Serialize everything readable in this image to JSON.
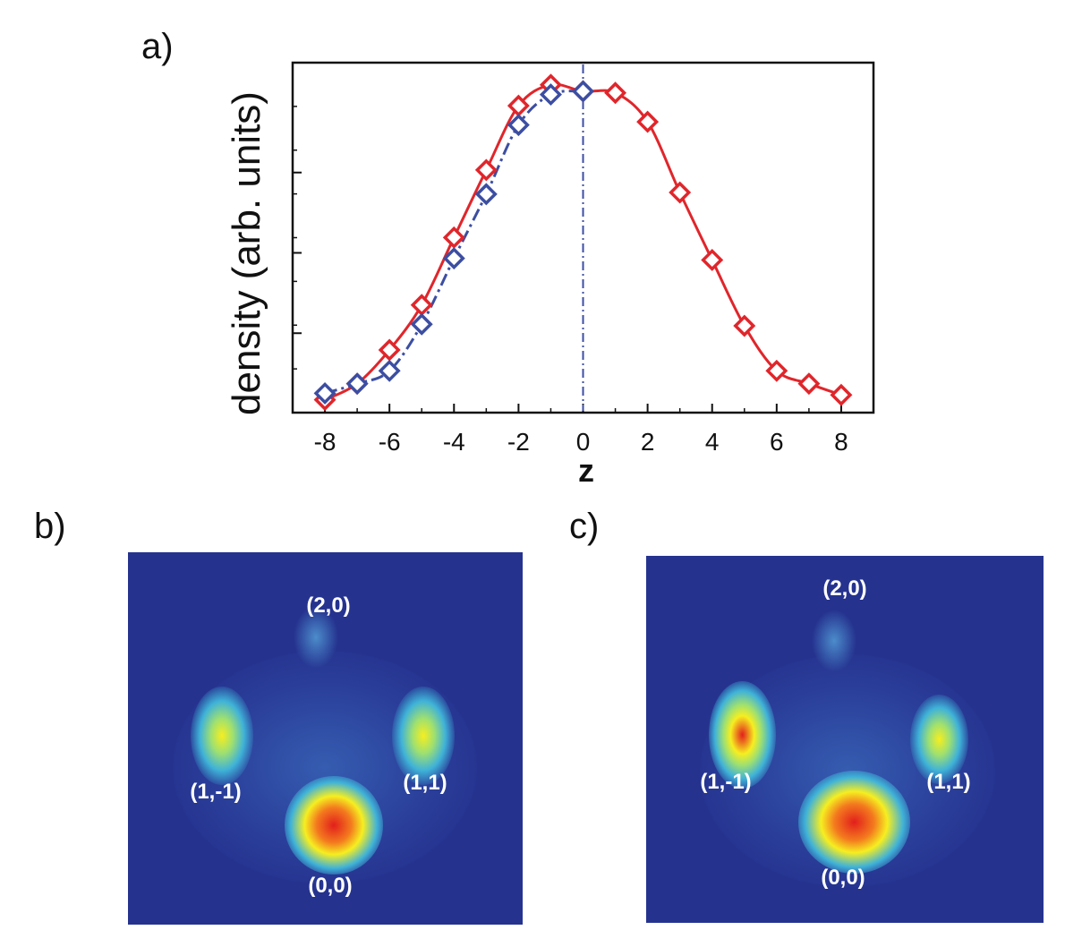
{
  "panels": {
    "a": "a)",
    "b": "b)",
    "c": "c)"
  },
  "chart_data": {
    "type": "scatter",
    "xlabel": "z",
    "ylabel": "density (arb. units)",
    "xlim": [
      -9,
      9
    ],
    "ylim": [
      0,
      1.0
    ],
    "x_ticks": [
      "-8",
      "-6",
      "-4",
      "-2",
      "0",
      "2",
      "4",
      "6",
      "8"
    ],
    "y_ticks_labeled": false,
    "vertical_reference_line": 0,
    "series": [
      {
        "color": "#e0262b",
        "marker": "diamond-open",
        "line": "solid",
        "points": [
          [
            -8,
            0.015
          ],
          [
            -7,
            0.065
          ],
          [
            -6,
            0.17
          ],
          [
            -5,
            0.31
          ],
          [
            -4,
            0.52
          ],
          [
            -3,
            0.73
          ],
          [
            -2,
            0.93
          ],
          [
            -1,
            0.995
          ],
          [
            0,
            0.975
          ],
          [
            1,
            0.97
          ],
          [
            2,
            0.88
          ],
          [
            3,
            0.66
          ],
          [
            4,
            0.45
          ],
          [
            5,
            0.245
          ],
          [
            6,
            0.105
          ],
          [
            7,
            0.065
          ],
          [
            8,
            0.03
          ]
        ]
      },
      {
        "color": "#3c4ea2",
        "marker": "diamond-open",
        "line": "dash-dot",
        "points": [
          [
            -8,
            0.035
          ],
          [
            -7,
            0.065
          ],
          [
            -6,
            0.105
          ],
          [
            -5,
            0.25
          ],
          [
            -4,
            0.455
          ],
          [
            -3,
            0.655
          ],
          [
            -2,
            0.87
          ],
          [
            -1,
            0.965
          ],
          [
            0,
            0.975
          ]
        ]
      }
    ]
  },
  "images": {
    "b": {
      "labels": {
        "top": "(2,0)",
        "left": "(1,-1)",
        "right": "(1,1)",
        "bottom": "(0,0)"
      }
    },
    "c": {
      "labels": {
        "top": "(2,0)",
        "left": "(1,-1)",
        "right": "(1,1)",
        "bottom": "(0,0)"
      }
    }
  }
}
